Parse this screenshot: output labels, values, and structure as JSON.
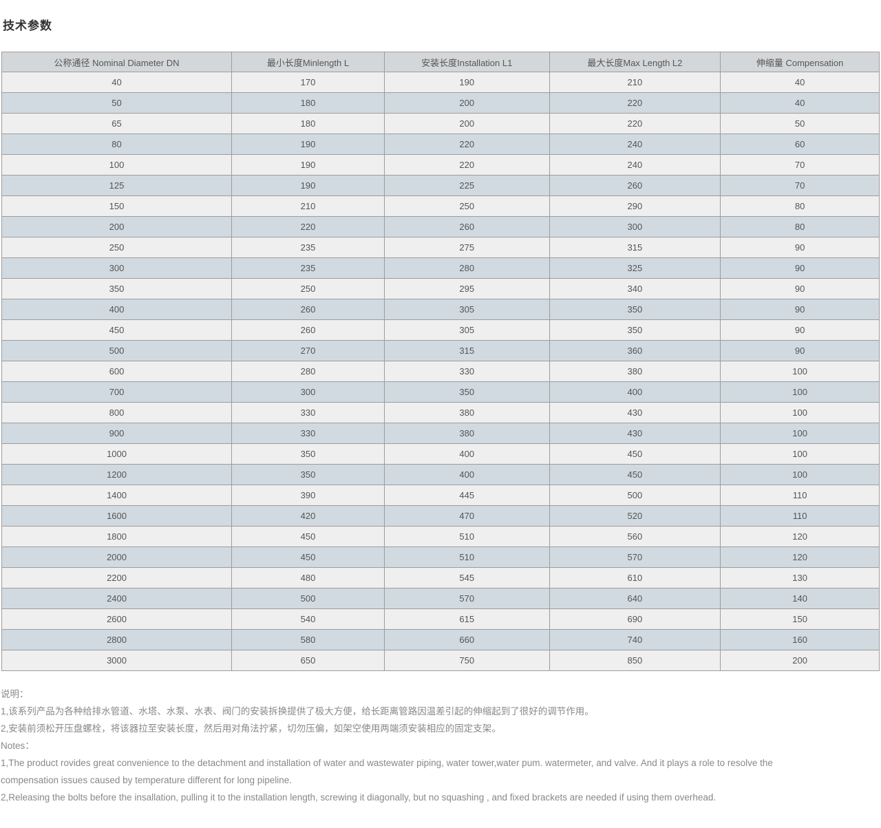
{
  "page_title": "技术参数",
  "table": {
    "columns": [
      {
        "key": "dn",
        "label": "公称通径 Nominal Diameter DN"
      },
      {
        "key": "min_length",
        "label": "最小长度Minlength L"
      },
      {
        "key": "installation",
        "label": "安装长度Installation L1"
      },
      {
        "key": "max_length",
        "label": "最大长度Max Length L2"
      },
      {
        "key": "compensation",
        "label": "伸缩量 Compensation"
      }
    ],
    "rows": [
      [
        "40",
        "170",
        "190",
        "210",
        "40"
      ],
      [
        "50",
        "180",
        "200",
        "220",
        "40"
      ],
      [
        "65",
        "180",
        "200",
        "220",
        "50"
      ],
      [
        "80",
        "190",
        "220",
        "240",
        "60"
      ],
      [
        "100",
        "190",
        "220",
        "240",
        "70"
      ],
      [
        "125",
        "190",
        "225",
        "260",
        "70"
      ],
      [
        "150",
        "210",
        "250",
        "290",
        "80"
      ],
      [
        "200",
        "220",
        "260",
        "300",
        "80"
      ],
      [
        "250",
        "235",
        "275",
        "315",
        "90"
      ],
      [
        "300",
        "235",
        "280",
        "325",
        "90"
      ],
      [
        "350",
        "250",
        "295",
        "340",
        "90"
      ],
      [
        "400",
        "260",
        "305",
        "350",
        "90"
      ],
      [
        "450",
        "260",
        "305",
        "350",
        "90"
      ],
      [
        "500",
        "270",
        "315",
        "360",
        "90"
      ],
      [
        "600",
        "280",
        "330",
        "380",
        "100"
      ],
      [
        "700",
        "300",
        "350",
        "400",
        "100"
      ],
      [
        "800",
        "330",
        "380",
        "430",
        "100"
      ],
      [
        "900",
        "330",
        "380",
        "430",
        "100"
      ],
      [
        "1000",
        "350",
        "400",
        "450",
        "100"
      ],
      [
        "1200",
        "350",
        "400",
        "450",
        "100"
      ],
      [
        "1400",
        "390",
        "445",
        "500",
        "110"
      ],
      [
        "1600",
        "420",
        "470",
        "520",
        "110"
      ],
      [
        "1800",
        "450",
        "510",
        "560",
        "120"
      ],
      [
        "2000",
        "450",
        "510",
        "570",
        "120"
      ],
      [
        "2200",
        "480",
        "545",
        "610",
        "130"
      ],
      [
        "2400",
        "500",
        "570",
        "640",
        "140"
      ],
      [
        "2600",
        "540",
        "615",
        "690",
        "150"
      ],
      [
        "2800",
        "580",
        "660",
        "740",
        "160"
      ],
      [
        "3000",
        "650",
        "750",
        "850",
        "200"
      ]
    ]
  },
  "notes": {
    "lines": [
      "说明：",
      "1,该系列产品为各种给排水管道、水塔、水泵、水表、阀门的安装拆换提供了极大方便，给长距离管路因温差引起的伸缩起到了很好的调节作用。",
      "2,安装前须松开压盘螺栓，将该器拉至安装长度，然后用对角法拧紧，切勿压偏，如架空使用两端须安装相应的固定支架。",
      "Notes：",
      "1,The product rovides great convenience to the detachment and installation of water and wastewater piping, water tower,water pum. watermeter, and valve. And it plays a role to resolve the",
      "compensation issues caused by temperature different for long pipeline.",
      "2,Releasing the bolts before the insallation, pulling it to the installation length, screwing it diagonally, but no squashing , and fixed brackets are needed if using them overhead."
    ]
  },
  "colors": {
    "header_bg": "#d4d7d9",
    "row_odd_bg": "#efefef",
    "row_even_bg": "#d1dae1",
    "border": "#9c9c9c",
    "cell_text": "#555555",
    "title_text": "#333333",
    "notes_text": "#888888"
  }
}
